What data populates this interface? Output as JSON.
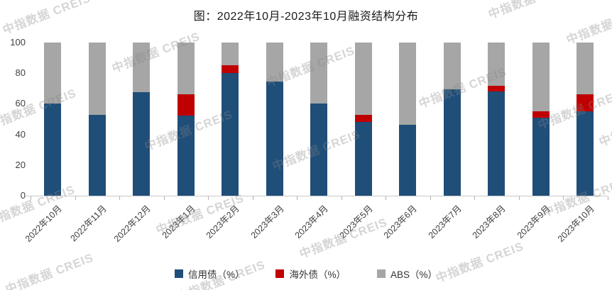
{
  "title": "图：2022年10月-2023年10月融资结构分布",
  "watermark": {
    "text": "中指数据 CREIS"
  },
  "colors": {
    "credit_bond": "#1f4e79",
    "overseas_bond": "#c00000",
    "abs": "#a6a6a6",
    "axis_line": "#c9c9c9",
    "label_text": "#404040"
  },
  "chart_data": {
    "type": "bar",
    "stacked": true,
    "unit": "percent",
    "title": "图：2022年10月-2023年10月融资结构分布",
    "categories": [
      "2022年10月",
      "2022年11月",
      "2022年12月",
      "2023年1月",
      "2023年2月",
      "2023年3月",
      "2023年4月",
      "2023年5月",
      "2023年6月",
      "2023年7月",
      "2023年8月",
      "2023年9月",
      "2023年10月"
    ],
    "series": [
      {
        "key": "credit-bond",
        "name": "信用债（%）",
        "color": "#1f4e79",
        "values": [
          60,
          53,
          67.5,
          52.5,
          80,
          74.5,
          60,
          48,
          46.5,
          69.5,
          68,
          51,
          55
        ]
      },
      {
        "key": "overseas-bond",
        "name": "海外债（%）",
        "color": "#c00000",
        "values": [
          0,
          0,
          0,
          13.5,
          5,
          0,
          0,
          5,
          0,
          0,
          4,
          4,
          11
        ]
      },
      {
        "key": "abs",
        "name": "ABS（%）",
        "color": "#a6a6a6",
        "values": [
          40,
          47,
          32.5,
          34,
          15,
          25.5,
          40,
          47,
          53.5,
          30.5,
          28,
          45,
          34
        ]
      }
    ],
    "xlabel": "",
    "ylabel": "",
    "ylim": [
      0,
      100
    ],
    "y_ticks": [
      0,
      20,
      40,
      60,
      80,
      100
    ],
    "grid": false,
    "legend_position": "bottom"
  }
}
